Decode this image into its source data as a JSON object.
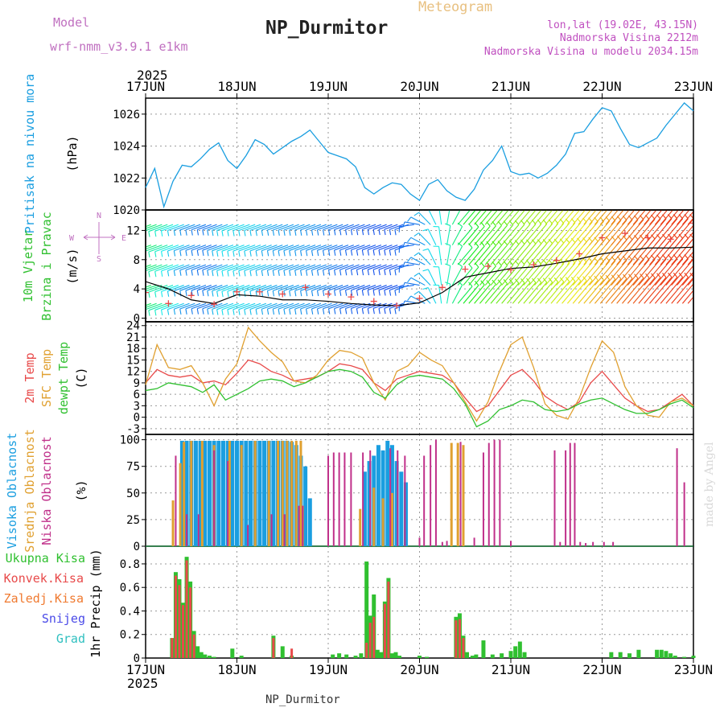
{
  "header": {
    "model_label": "Model",
    "model_name": "wrf-nmm_v3.9.1 e1km",
    "title": "NP_Durmitor",
    "subtitle": "Meteogram",
    "lonlat": "lon,lat (19.02E, 43.15N)",
    "elevation": "Nadmorska Visina 2212m",
    "model_elevation": "Nadmorska Visina u modelu 2034.15m",
    "footer": "NP_Durmitor",
    "credit": "made by Angel"
  },
  "colors": {
    "pressure": "#1a9ee0",
    "temp2m": "#e84a4a",
    "sfc_temp": "#e0a030",
    "dewpt": "#30c030",
    "cloud_high": "#1a9ee0",
    "cloud_mid": "#e0a030",
    "cloud_low": "#c0308a",
    "precip_total": "#30c030",
    "precip_conv": "#e84a4a",
    "precip_froz": "#f07a30",
    "snow": "#4a4ae8",
    "hail": "#30c0c0",
    "model_label": "#c070c0",
    "header_right": "#c050c0",
    "subtitle": "#e8c080"
  },
  "chart_data": [
    {
      "type": "line",
      "panel": "pressure",
      "ylabel": [
        "Pritisak na nivou mora",
        "(hPa)"
      ],
      "ylim": [
        1020,
        1027
      ],
      "yticks": [
        1020,
        1022,
        1024,
        1026
      ],
      "x_range_days": [
        0,
        6
      ],
      "year": "2025",
      "x_tick_labels": [
        "17JUN",
        "18JUN",
        "19JUN",
        "20JUN",
        "21JUN",
        "22JUN",
        "23JUN"
      ],
      "x_days": [
        0,
        0.1,
        0.2,
        0.3,
        0.4,
        0.5,
        0.6,
        0.7,
        0.8,
        0.9,
        1.0,
        1.1,
        1.2,
        1.3,
        1.4,
        1.5,
        1.6,
        1.7,
        1.8,
        1.9,
        2.0,
        2.1,
        2.2,
        2.3,
        2.4,
        2.5,
        2.6,
        2.7,
        2.8,
        2.9,
        3.0,
        3.1,
        3.2,
        3.3,
        3.4,
        3.5,
        3.6,
        3.7,
        3.8,
        3.9,
        4.0,
        4.1,
        4.2,
        4.3,
        4.4,
        4.5,
        4.6,
        4.7,
        4.8,
        4.9,
        5.0,
        5.1,
        5.2,
        5.3,
        5.4,
        5.5,
        5.6,
        5.7,
        5.8,
        5.9,
        6.0
      ],
      "values": [
        1021.4,
        1022.6,
        1020.2,
        1021.8,
        1022.8,
        1022.7,
        1023.2,
        1023.8,
        1024.2,
        1023.1,
        1022.6,
        1023.4,
        1024.4,
        1024.1,
        1023.5,
        1023.9,
        1024.3,
        1024.6,
        1025.0,
        1024.3,
        1023.6,
        1023.4,
        1023.2,
        1022.7,
        1021.4,
        1021.0,
        1021.4,
        1021.7,
        1021.6,
        1021.0,
        1020.6,
        1021.6,
        1021.9,
        1021.2,
        1020.8,
        1020.6,
        1021.3,
        1022.5,
        1023.1,
        1024.0,
        1022.4,
        1022.2,
        1022.3,
        1022.0,
        1022.3,
        1022.8,
        1023.5,
        1024.8,
        1024.9,
        1025.7,
        1026.4,
        1026.2,
        1025.1,
        1024.1,
        1023.9,
        1024.2,
        1024.5,
        1025.3,
        1026.0,
        1026.7,
        1026.2
      ]
    },
    {
      "type": "wind",
      "panel": "wind",
      "ylabel": [
        "10m Vjetar",
        "Brzina i Pravac",
        "(m/s)"
      ],
      "compass": [
        "N",
        "W",
        "E",
        "S"
      ],
      "ylim": [
        -0.5,
        14.8
      ],
      "yticks": [
        0,
        4,
        8,
        12
      ],
      "x_days": [
        0,
        0.25,
        0.5,
        0.75,
        1.0,
        1.25,
        1.5,
        1.75,
        2.0,
        2.25,
        2.5,
        2.75,
        3.0,
        3.25,
        3.5,
        3.75,
        4.0,
        4.25,
        4.5,
        4.75,
        5.0,
        5.25,
        5.5,
        5.75,
        6.0
      ],
      "speed": [
        5.0,
        4.0,
        2.5,
        2.0,
        3.2,
        3.0,
        2.5,
        2.5,
        2.3,
        2.0,
        1.8,
        1.7,
        2.1,
        3.5,
        5.6,
        6.2,
        6.8,
        7.0,
        7.5,
        8.1,
        8.8,
        9.2,
        9.6,
        9.6,
        9.7
      ],
      "gust": [
        3.5,
        2.0,
        3.1,
        1.9,
        3.6,
        3.6,
        3.3,
        4.2,
        3.3,
        2.9,
        2.3,
        1.7,
        2.7,
        4.2,
        6.7,
        7.1,
        6.6,
        7.3,
        7.9,
        8.8,
        11.0,
        11.6,
        11.0,
        10.8,
        13.0
      ]
    },
    {
      "type": "line",
      "panel": "temperature",
      "ylabel": [
        "2m Temp",
        "SFC Temp",
        "dewpt Temp",
        "(C)"
      ],
      "ylim": [
        -4.5,
        25
      ],
      "yticks": [
        -3,
        0,
        3,
        6,
        9,
        12,
        15,
        18,
        21,
        24
      ],
      "x_days": [
        0,
        0.125,
        0.25,
        0.375,
        0.5,
        0.625,
        0.75,
        0.875,
        1.0,
        1.125,
        1.25,
        1.375,
        1.5,
        1.625,
        1.75,
        1.875,
        2.0,
        2.125,
        2.25,
        2.375,
        2.5,
        2.625,
        2.75,
        2.875,
        3.0,
        3.125,
        3.25,
        3.375,
        3.5,
        3.625,
        3.75,
        3.875,
        4.0,
        4.125,
        4.25,
        4.375,
        4.5,
        4.625,
        4.75,
        4.875,
        5.0,
        5.125,
        5.25,
        5.375,
        5.5,
        5.625,
        5.75,
        5.875,
        6.0
      ],
      "series": [
        {
          "name": "2m Temp",
          "values": [
            9.0,
            12.5,
            11.0,
            10.5,
            11.0,
            9.0,
            9.5,
            8.5,
            11.5,
            15.0,
            14.0,
            12.0,
            11.0,
            9.5,
            10.0,
            10.5,
            12.0,
            14.0,
            13.5,
            12.5,
            9.0,
            7.0,
            10.0,
            11.0,
            12.0,
            11.5,
            11.0,
            9.0,
            5.0,
            1.5,
            3.0,
            7.0,
            11.0,
            12.5,
            9.5,
            5.5,
            3.5,
            2.0,
            4.0,
            9.0,
            12.0,
            8.5,
            5.0,
            3.0,
            1.5,
            2.0,
            4.0,
            6.0,
            3.0
          ]
        },
        {
          "name": "SFC Temp",
          "values": [
            8.5,
            19.0,
            13.0,
            12.5,
            13.5,
            9.0,
            3.0,
            10.0,
            14.0,
            23.5,
            20.0,
            17.0,
            14.5,
            9.5,
            9.0,
            11.0,
            15.0,
            17.5,
            17.0,
            15.5,
            9.0,
            4.5,
            12.0,
            13.5,
            17.0,
            15.0,
            13.5,
            9.0,
            4.0,
            -1.0,
            4.0,
            12.0,
            19.0,
            21.0,
            13.0,
            3.5,
            0.5,
            -0.5,
            5.0,
            13.0,
            20.0,
            17.0,
            8.0,
            3.0,
            0.5,
            0.0,
            4.0,
            5.0,
            3.0
          ]
        },
        {
          "name": "dewpt Temp",
          "values": [
            7.0,
            7.5,
            9.0,
            8.5,
            8.0,
            6.5,
            8.5,
            4.5,
            6.0,
            7.5,
            9.5,
            10.0,
            9.5,
            8.0,
            9.0,
            10.5,
            12.0,
            12.5,
            12.0,
            10.5,
            6.5,
            5.0,
            8.5,
            10.5,
            11.0,
            10.5,
            10.0,
            7.5,
            3.5,
            -2.5,
            -1.0,
            2.0,
            3.0,
            4.5,
            4.0,
            2.0,
            1.5,
            2.0,
            3.5,
            4.5,
            5.0,
            3.5,
            2.0,
            1.0,
            1.0,
            2.0,
            3.5,
            4.5,
            2.5
          ]
        }
      ]
    },
    {
      "type": "bar",
      "panel": "clouds",
      "ylabel": [
        "Visoka Oblacnost",
        "Srednja Oblacnost",
        "Niska Oblacnost",
        "(%)"
      ],
      "ylim": [
        0,
        105
      ],
      "yticks": [
        0,
        25,
        50,
        75,
        100
      ],
      "series": [
        {
          "name": "Visoka Oblacnost",
          "x_days": [
            0.4,
            0.45,
            0.5,
            0.55,
            0.6,
            0.65,
            0.7,
            0.75,
            0.8,
            0.85,
            0.9,
            0.95,
            1.0,
            1.05,
            1.1,
            1.15,
            1.2,
            1.25,
            1.3,
            1.35,
            1.4,
            1.45,
            1.5,
            1.55,
            1.6,
            1.65,
            1.7,
            1.75,
            1.8,
            2.4,
            2.45,
            2.5,
            2.55,
            2.6,
            2.65,
            2.7,
            2.75,
            2.8,
            2.85
          ],
          "values": [
            99,
            99,
            99,
            99,
            99,
            99,
            99,
            99,
            99,
            99,
            99,
            99,
            99,
            99,
            99,
            99,
            99,
            99,
            99,
            99,
            99,
            99,
            99,
            99,
            98,
            95,
            85,
            75,
            45,
            70,
            80,
            85,
            95,
            90,
            99,
            95,
            80,
            70,
            60
          ]
        },
        {
          "name": "Srednja Oblacnost",
          "x_days": [
            0.3,
            0.38,
            0.42,
            0.5,
            0.62,
            0.75,
            0.92,
            1.05,
            1.2,
            1.35,
            1.45,
            1.5,
            1.55,
            1.6,
            1.65,
            1.7,
            1.72,
            2.35,
            2.5,
            2.6,
            2.7,
            3.35,
            3.42,
            3.48
          ],
          "values": [
            43,
            78,
            98,
            99,
            99,
            95,
            99,
            95,
            99,
            99,
            99,
            99,
            99,
            99,
            99,
            99,
            38,
            35,
            55,
            45,
            50,
            97,
            97,
            95
          ]
        },
        {
          "name": "Niska Oblacnost",
          "x_days": [
            0.33,
            0.45,
            0.58,
            0.75,
            0.9,
            1.12,
            1.38,
            1.52,
            1.68,
            1.72,
            2.0,
            2.06,
            2.12,
            2.18,
            2.25,
            2.38,
            2.46,
            2.68,
            2.76,
            2.84,
            3.0,
            3.05,
            3.12,
            3.18,
            3.25,
            3.3,
            3.45,
            3.6,
            3.7,
            3.76,
            3.82,
            3.88,
            4.0,
            4.48,
            4.54,
            4.6,
            4.65,
            4.7,
            4.76,
            4.82,
            4.9,
            5.02,
            5.12,
            5.82,
            5.9
          ],
          "values": [
            85,
            30,
            30,
            90,
            80,
            20,
            30,
            30,
            38,
            38,
            85,
            88,
            88,
            88,
            88,
            88,
            90,
            92,
            90,
            85,
            8,
            85,
            95,
            100,
            4,
            5,
            98,
            8,
            88,
            97,
            100,
            100,
            5,
            90,
            4,
            90,
            97,
            97,
            4,
            3,
            4,
            4,
            4,
            92,
            60
          ]
        }
      ]
    },
    {
      "type": "bar",
      "panel": "precip",
      "ylabel": [
        "1hr Precip (mm)"
      ],
      "legend": [
        "Ukupna Kisa",
        "Konvek.Kisa",
        "Zaledj.Kisa",
        "Snijeg",
        "Grad"
      ],
      "ylim": [
        0,
        0.95
      ],
      "yticks": [
        0,
        0.2,
        0.4,
        0.6,
        0.8
      ],
      "x_tick_labels": [
        "17JUN",
        "18JUN",
        "19JUN",
        "20JUN",
        "21JUN",
        "22JUN",
        "23JUN"
      ],
      "year": "2025",
      "series": [
        {
          "name": "Ukupna Kisa",
          "x_days": [
            0.29,
            0.33,
            0.37,
            0.41,
            0.45,
            0.49,
            0.53,
            0.57,
            0.61,
            0.65,
            0.7,
            0.75,
            0.95,
            1.05,
            1.4,
            1.5,
            1.6,
            2.05,
            2.12,
            2.2,
            2.3,
            2.36,
            2.42,
            2.46,
            2.5,
            2.54,
            2.58,
            2.62,
            2.66,
            2.7,
            2.74,
            2.78,
            3.0,
            3.08,
            3.4,
            3.44,
            3.48,
            3.52,
            3.58,
            3.62,
            3.7,
            3.8,
            3.9,
            4.0,
            4.05,
            4.1,
            4.15,
            5.1,
            5.2,
            5.3,
            5.4,
            5.6,
            5.65,
            5.7,
            5.75,
            5.8,
            5.9,
            6.0
          ],
          "values": [
            0.17,
            0.73,
            0.67,
            0.47,
            0.86,
            0.65,
            0.23,
            0.1,
            0.05,
            0.03,
            0.02,
            0.01,
            0.08,
            0.02,
            0.19,
            0.1,
            0.02,
            0.03,
            0.04,
            0.03,
            0.02,
            0.04,
            0.82,
            0.36,
            0.54,
            0.07,
            0.05,
            0.48,
            0.68,
            0.04,
            0.05,
            0.02,
            0.02,
            0.01,
            0.35,
            0.38,
            0.19,
            0.05,
            0.02,
            0.03,
            0.15,
            0.03,
            0.04,
            0.06,
            0.1,
            0.14,
            0.05,
            0.05,
            0.05,
            0.04,
            0.07,
            0.07,
            0.07,
            0.06,
            0.04,
            0.02,
            0.01,
            0.02
          ]
        },
        {
          "name": "Konvek.Kisa",
          "x_days": [
            0.29,
            0.33,
            0.37,
            0.41,
            0.45,
            0.49,
            0.53,
            1.4,
            1.6,
            2.42,
            2.46,
            2.5,
            2.62,
            2.66,
            3.4,
            3.44,
            3.48
          ],
          "values": [
            0.17,
            0.7,
            0.62,
            0.45,
            0.83,
            0.6,
            0.2,
            0.17,
            0.08,
            0.13,
            0.3,
            0.35,
            0.46,
            0.65,
            0.32,
            0.33,
            0.17
          ]
        }
      ]
    }
  ]
}
